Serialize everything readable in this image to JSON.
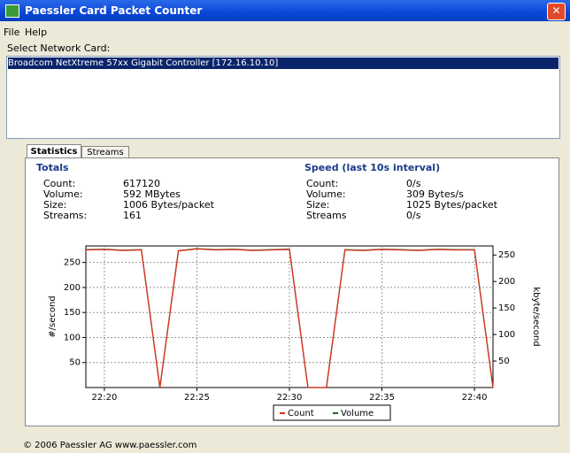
{
  "window": {
    "title": "Paessler Card Packet Counter",
    "menu": [
      "File",
      "Help"
    ]
  },
  "card_select": {
    "label": "Select Network Card:",
    "items": [
      "Broadcom NetXtreme 57xx Gigabit Controller [172.16.10.10]"
    ]
  },
  "tabs": [
    "Statistics",
    "Streams"
  ],
  "totals": {
    "title": "Totals",
    "rows": [
      [
        "Count:",
        "617120"
      ],
      [
        "Volume:",
        "592 MBytes"
      ],
      [
        "Size:",
        "1006 Bytes/packet"
      ],
      [
        "Streams:",
        "161"
      ]
    ]
  },
  "speed": {
    "title": "Speed (last 10s interval)",
    "rows": [
      [
        "Count:",
        "0/s"
      ],
      [
        "Volume:",
        "309 Bytes/s"
      ],
      [
        "Size:",
        "1025 Bytes/packet"
      ],
      [
        "Streams",
        "0/s"
      ]
    ]
  },
  "footer": "© 2006 Paessler AG www.paessler.com",
  "chart_data": {
    "type": "line",
    "ylabel": "#/second",
    "y2label": "kbyte/second",
    "x": [
      "22:19",
      "22:20",
      "22:21",
      "22:22",
      "22:23",
      "22:24",
      "22:25",
      "22:26",
      "22:27",
      "22:28",
      "22:29",
      "22:30",
      "22:31",
      "22:32",
      "22:33",
      "22:34",
      "22:35",
      "22:36",
      "22:37",
      "22:38",
      "22:39",
      "22:40",
      "22:41"
    ],
    "xlim": [
      "22:19",
      "22:41"
    ],
    "xticks": [
      "22:20",
      "22:25",
      "22:30",
      "22:35",
      "22:40"
    ],
    "ylim": [
      0,
      283
    ],
    "yticks": [
      50,
      100,
      150,
      200,
      250
    ],
    "y2lim": [
      0,
      267
    ],
    "y2ticks": [
      50,
      100,
      150,
      200,
      250
    ],
    "grid": true,
    "legend": "bottom",
    "series": [
      {
        "name": "Count",
        "color": "#e03020",
        "values": [
          275,
          276,
          274,
          275,
          0,
          273,
          277,
          275,
          276,
          274,
          275,
          276,
          0,
          0,
          275,
          274,
          276,
          275,
          274,
          276,
          275,
          275,
          0
        ]
      },
      {
        "name": "Volume",
        "color": "#1a6a1a",
        "axis": "y2",
        "values": [
          260,
          261,
          259,
          260,
          0,
          258,
          262,
          260,
          261,
          259,
          260,
          261,
          0,
          0,
          260,
          259,
          261,
          260,
          259,
          261,
          260,
          260,
          0
        ]
      }
    ]
  }
}
